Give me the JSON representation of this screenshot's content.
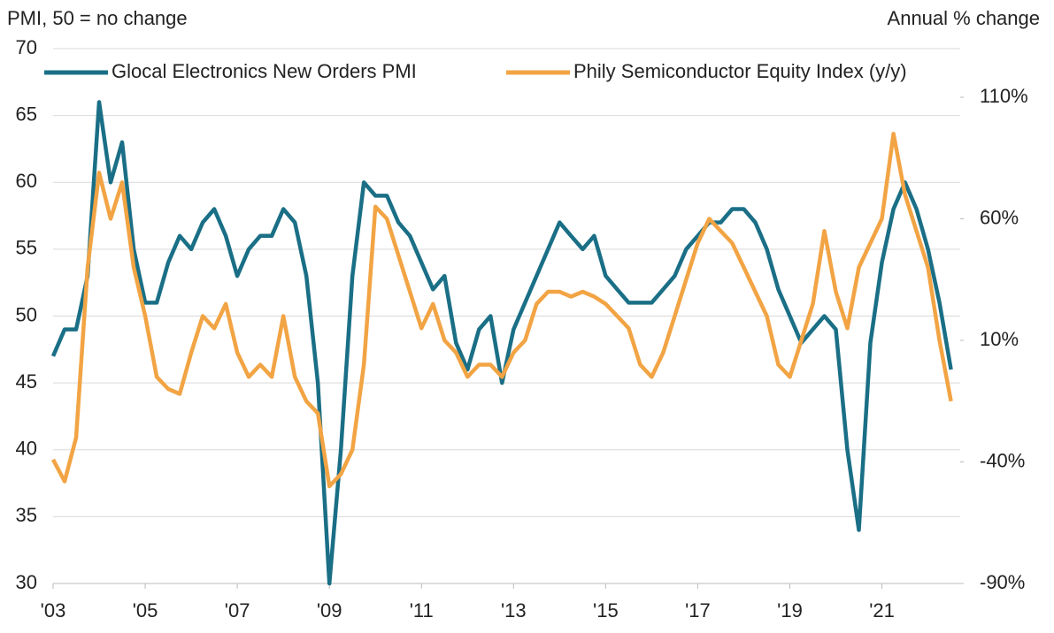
{
  "chart_data": {
    "type": "line",
    "y_label": "PMI, 50 = no change",
    "y2_label": "Annual % change",
    "x": [
      2003,
      2003.25,
      2003.5,
      2003.75,
      2004,
      2004.25,
      2004.5,
      2004.75,
      2005,
      2005.25,
      2005.5,
      2005.75,
      2006,
      2006.25,
      2006.5,
      2006.75,
      2007,
      2007.25,
      2007.5,
      2007.75,
      2008,
      2008.25,
      2008.5,
      2008.75,
      2009,
      2009.25,
      2009.5,
      2009.75,
      2010,
      2010.25,
      2010.5,
      2010.75,
      2011,
      2011.25,
      2011.5,
      2011.75,
      2012,
      2012.25,
      2012.5,
      2012.75,
      2013,
      2013.25,
      2013.5,
      2013.75,
      2014,
      2014.25,
      2014.5,
      2014.75,
      2015,
      2015.25,
      2015.5,
      2015.75,
      2016,
      2016.25,
      2016.5,
      2016.75,
      2017,
      2017.25,
      2017.5,
      2017.75,
      2018,
      2018.25,
      2018.5,
      2018.75,
      2019,
      2019.25,
      2019.5,
      2019.75,
      2020,
      2020.25,
      2020.5,
      2020.75,
      2021,
      2021.25,
      2021.5,
      2021.75,
      2022,
      2022.25,
      2022.5
    ],
    "series": [
      {
        "name": "Glocal Electronics New Orders PMI",
        "color": "#1a6f86",
        "axis": "y",
        "values": [
          47,
          49,
          49,
          53,
          66,
          60,
          63,
          55,
          51,
          51,
          54,
          56,
          55,
          57,
          58,
          56,
          53,
          55,
          56,
          56,
          58,
          57,
          53,
          45,
          30,
          40,
          53,
          60,
          59,
          59,
          57,
          56,
          54,
          52,
          53,
          48,
          46,
          49,
          50,
          45,
          49,
          51,
          53,
          55,
          57,
          56,
          55,
          56,
          53,
          52,
          51,
          51,
          51,
          52,
          53,
          55,
          56,
          57,
          57,
          58,
          58,
          57,
          55,
          52,
          50,
          48,
          49,
          50,
          49,
          40,
          34,
          48,
          54,
          58,
          60,
          58,
          55,
          51,
          46
        ]
      },
      {
        "name": "Phily Semiconductor Equity Index (y/y)",
        "color": "#f2a444",
        "axis": "y2",
        "values": [
          -39,
          -48,
          -30,
          40,
          79,
          60,
          75,
          40,
          20,
          -5,
          -10,
          -12,
          5,
          20,
          15,
          25,
          5,
          -5,
          0,
          -5,
          20,
          -5,
          -15,
          -20,
          -50,
          -45,
          -35,
          0,
          65,
          60,
          45,
          30,
          15,
          25,
          10,
          5,
          -5,
          0,
          0,
          -5,
          5,
          10,
          25,
          30,
          30,
          28,
          30,
          28,
          25,
          20,
          15,
          0,
          -5,
          5,
          20,
          35,
          50,
          60,
          55,
          50,
          40,
          30,
          20,
          0,
          -5,
          10,
          25,
          55,
          30,
          15,
          40,
          50,
          60,
          95,
          70,
          55,
          40,
          10,
          -15
        ]
      }
    ],
    "xlim": [
      2003,
      2022.7
    ],
    "xticks": [
      {
        "value": 2003,
        "label": "'03"
      },
      {
        "value": 2005,
        "label": "'05"
      },
      {
        "value": 2007,
        "label": "'07"
      },
      {
        "value": 2009,
        "label": "'09"
      },
      {
        "value": 2011,
        "label": "'11"
      },
      {
        "value": 2013,
        "label": "'13"
      },
      {
        "value": 2015,
        "label": "'15"
      },
      {
        "value": 2017,
        "label": "'17"
      },
      {
        "value": 2019,
        "label": "'19"
      },
      {
        "value": 2021,
        "label": "'21"
      }
    ],
    "ylim": [
      30,
      70
    ],
    "yticks": [
      30,
      35,
      40,
      45,
      50,
      55,
      60,
      65,
      70
    ],
    "y2lim": [
      -90,
      130
    ],
    "y2ticks": [
      {
        "value": -90,
        "label": "-90%"
      },
      {
        "value": -40,
        "label": "-40%"
      },
      {
        "value": 10,
        "label": "10%"
      },
      {
        "value": 60,
        "label": "60%"
      },
      {
        "value": 110,
        "label": "110%"
      }
    ],
    "grid": true,
    "legend": "top"
  }
}
